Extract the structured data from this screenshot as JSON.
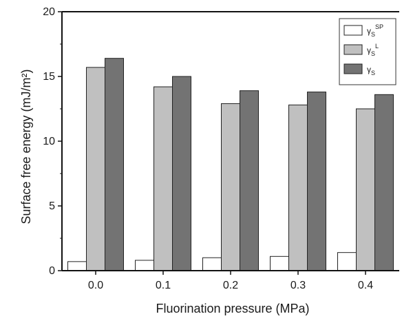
{
  "chart_data": {
    "type": "bar",
    "title": "",
    "xlabel": "Fluorination pressure (MPa)",
    "ylabel": "Surface free energy (mJ/m²)",
    "ylim": [
      0,
      20
    ],
    "yticks": [
      0,
      5,
      10,
      15,
      20
    ],
    "categories": [
      "0.0",
      "0.1",
      "0.2",
      "0.3",
      "0.4"
    ],
    "legend_position": "top-right",
    "grid": false,
    "series": [
      {
        "name": "γS SP",
        "base": "γ",
        "sub": "S",
        "sup": "SP",
        "color": "#ffffff",
        "values": [
          0.7,
          0.8,
          1.0,
          1.1,
          1.4
        ]
      },
      {
        "name": "γS L",
        "base": "γ",
        "sub": "S",
        "sup": "L",
        "color": "#c0c0c0",
        "values": [
          15.7,
          14.2,
          12.9,
          12.8,
          12.5
        ]
      },
      {
        "name": "γS",
        "base": "γ",
        "sub": "S",
        "sup": "",
        "color": "#737373",
        "values": [
          16.4,
          15.0,
          13.9,
          13.8,
          13.6
        ]
      }
    ]
  }
}
